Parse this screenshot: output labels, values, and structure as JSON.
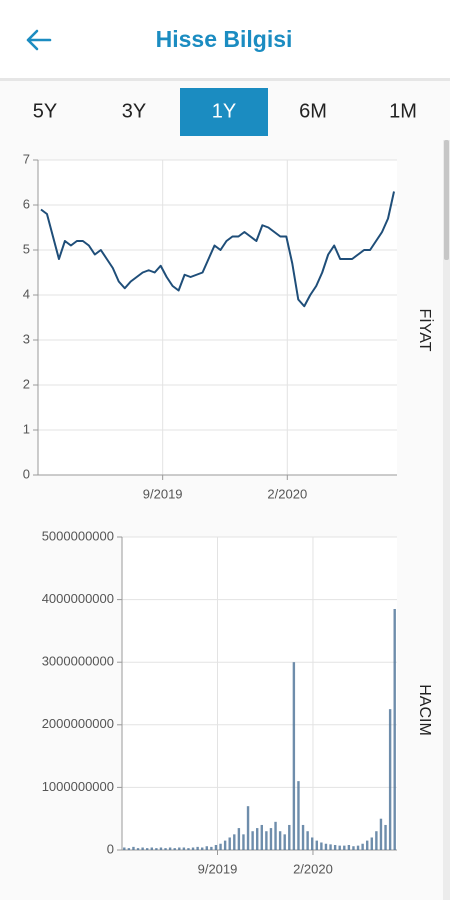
{
  "header": {
    "title": "Hisse Bilgisi"
  },
  "tabs": {
    "items": [
      "5Y",
      "3Y",
      "1Y",
      "6M",
      "1M"
    ],
    "selected": 2
  },
  "chart_data": [
    {
      "type": "line",
      "y_label": "FİYAT",
      "color": "#1f4e79",
      "x": [
        2019.26,
        2019.28,
        2019.3,
        2019.32,
        2019.34,
        2019.36,
        2019.38,
        2019.4,
        2019.42,
        2019.44,
        2019.46,
        2019.48,
        2019.5,
        2019.52,
        2019.54,
        2019.56,
        2019.58,
        2019.6,
        2019.62,
        2019.64,
        2019.66,
        2019.68,
        2019.7,
        2019.72,
        2019.74,
        2019.76,
        2019.78,
        2019.8,
        2019.82,
        2019.84,
        2019.86,
        2019.88,
        2019.9,
        2019.92,
        2019.94,
        2019.96,
        2019.98,
        2020.0,
        2020.02,
        2020.04,
        2020.06,
        2020.08,
        2020.1,
        2020.12,
        2020.14,
        2020.16,
        2020.18,
        2020.2,
        2020.22,
        2020.24,
        2020.26,
        2020.28,
        2020.3,
        2020.32,
        2020.34,
        2020.36,
        2020.38,
        2020.4,
        2020.42,
        2020.44
      ],
      "values": [
        5.9,
        5.8,
        5.3,
        4.8,
        5.2,
        5.1,
        5.2,
        5.2,
        5.1,
        4.9,
        5.0,
        4.8,
        4.6,
        4.3,
        4.15,
        4.3,
        4.4,
        4.5,
        4.55,
        4.5,
        4.65,
        4.4,
        4.2,
        4.1,
        4.45,
        4.4,
        4.45,
        4.5,
        4.8,
        5.1,
        5.0,
        5.2,
        5.3,
        5.3,
        5.4,
        5.3,
        5.2,
        5.55,
        5.5,
        5.4,
        5.3,
        5.3,
        4.7,
        3.9,
        3.75,
        4.0,
        4.2,
        4.5,
        4.9,
        5.1,
        4.8,
        4.8,
        4.8,
        4.9,
        5.0,
        5.0,
        5.2,
        5.4,
        5.7,
        6.3
      ],
      "xlim": [
        2019.25,
        2020.45
      ],
      "xticks": [
        {
          "value": 2019.6667,
          "label": "9/2019"
        },
        {
          "value": 2020.0833,
          "label": "2/2020"
        }
      ],
      "ylim": [
        0,
        7
      ],
      "yticks": [
        0,
        1,
        2,
        3,
        4,
        5,
        6,
        7
      ],
      "grid": true
    },
    {
      "type": "bar",
      "y_label": "HACIM",
      "color": "#4a7096",
      "x": [
        2019.26,
        2019.28,
        2019.3,
        2019.32,
        2019.34,
        2019.36,
        2019.38,
        2019.4,
        2019.42,
        2019.44,
        2019.46,
        2019.48,
        2019.5,
        2019.52,
        2019.54,
        2019.56,
        2019.58,
        2019.6,
        2019.62,
        2019.64,
        2019.66,
        2019.68,
        2019.7,
        2019.72,
        2019.74,
        2019.76,
        2019.78,
        2019.8,
        2019.82,
        2019.84,
        2019.86,
        2019.88,
        2019.9,
        2019.92,
        2019.94,
        2019.96,
        2019.98,
        2020.0,
        2020.02,
        2020.04,
        2020.06,
        2020.08,
        2020.1,
        2020.12,
        2020.14,
        2020.16,
        2020.18,
        2020.2,
        2020.22,
        2020.24,
        2020.26,
        2020.28,
        2020.3,
        2020.32,
        2020.34,
        2020.36,
        2020.38,
        2020.4,
        2020.42,
        2020.44
      ],
      "values": [
        40000000,
        30000000,
        50000000,
        30000000,
        40000000,
        30000000,
        40000000,
        30000000,
        40000000,
        30000000,
        40000000,
        30000000,
        40000000,
        40000000,
        30000000,
        40000000,
        50000000,
        40000000,
        60000000,
        50000000,
        80000000,
        100000000,
        150000000,
        200000000,
        250000000,
        350000000,
        250000000,
        700000000,
        300000000,
        350000000,
        400000000,
        300000000,
        350000000,
        450000000,
        300000000,
        250000000,
        400000000,
        3000000000,
        1100000000,
        400000000,
        300000000,
        200000000,
        150000000,
        120000000,
        100000000,
        90000000,
        80000000,
        70000000,
        70000000,
        80000000,
        60000000,
        70000000,
        100000000,
        150000000,
        200000000,
        300000000,
        500000000,
        400000000,
        2250000000,
        3850000000
      ],
      "xlim": [
        2019.25,
        2020.45
      ],
      "xticks": [
        {
          "value": 2019.6667,
          "label": "9/2019"
        },
        {
          "value": 2020.0833,
          "label": "2/2020"
        }
      ],
      "ylim": [
        0,
        5000000000
      ],
      "yticks": [
        0,
        1000000000,
        2000000000,
        3000000000,
        4000000000,
        5000000000
      ],
      "grid": true
    }
  ]
}
